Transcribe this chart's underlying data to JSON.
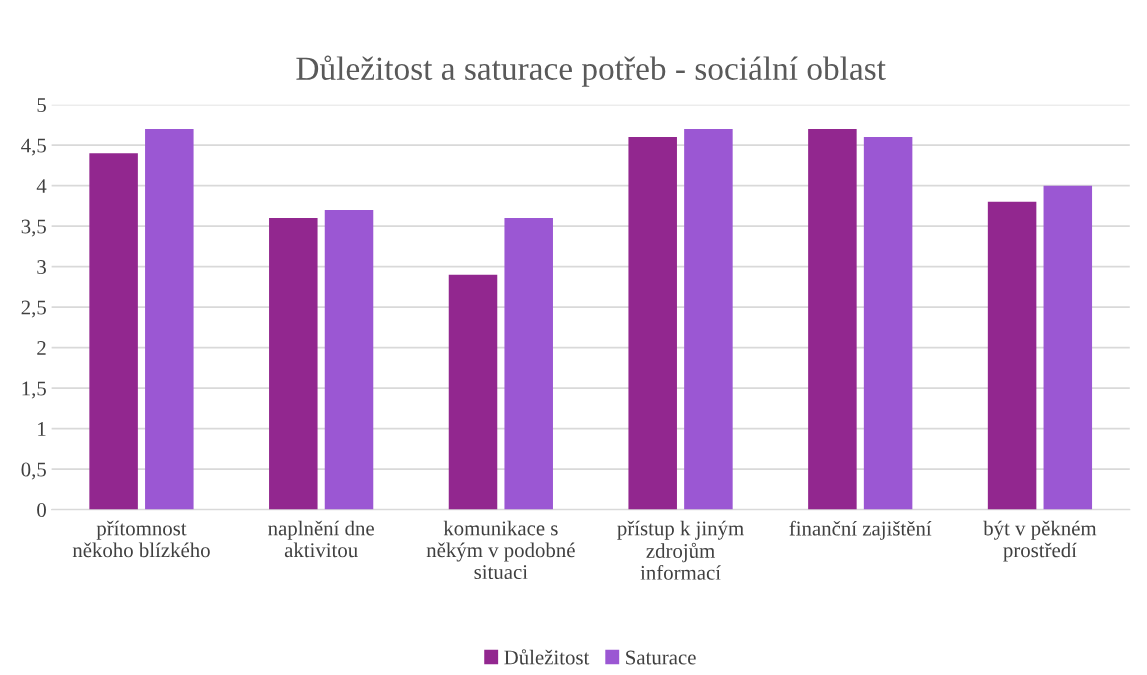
{
  "chart_data": {
    "type": "bar",
    "title": "Důležitost a saturace potřeb - sociální oblast",
    "categories": [
      "přítomnost\nněkoho blízkého",
      "naplnění dne\naktivitou",
      "komunikace s\nněkým v podobné\nsituaci",
      "přístup k jiným\nzdrojům\ninformací",
      "finanční zajištění",
      "být v pěkném\nprostředí"
    ],
    "series": [
      {
        "name": "Důležitost",
        "color": "#92278f",
        "values": [
          4.4,
          3.6,
          2.9,
          4.6,
          4.7,
          3.8
        ]
      },
      {
        "name": "Saturace",
        "color": "#9b57d3",
        "values": [
          4.7,
          3.7,
          3.6,
          4.7,
          4.6,
          4.0
        ]
      }
    ],
    "ylim": [
      0,
      5
    ],
    "yticks": [
      0,
      {
        "value": 0.5,
        "label": "0,5"
      },
      1,
      {
        "value": 1.5,
        "label": "1,5"
      },
      2,
      {
        "value": 2.5,
        "label": "2,5"
      },
      3,
      {
        "value": 3.5,
        "label": "3,5"
      },
      4,
      {
        "value": 4.5,
        "label": "4,5"
      },
      5
    ],
    "grid": "y",
    "legend": "bottom"
  }
}
